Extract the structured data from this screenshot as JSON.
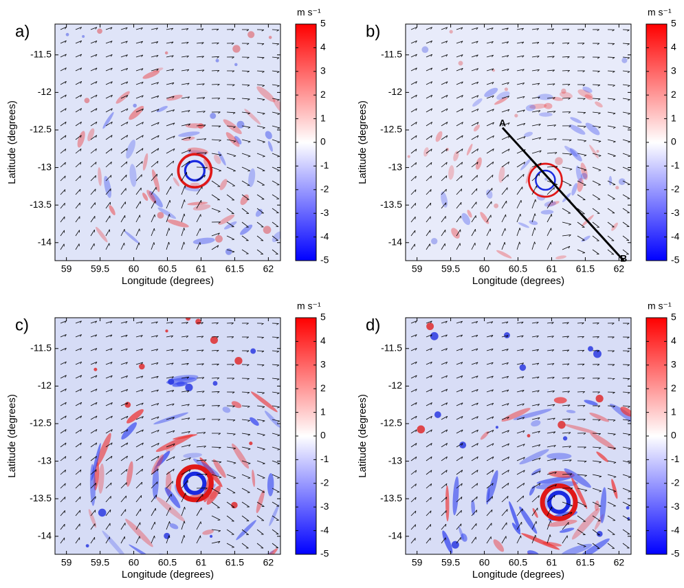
{
  "chart_data": [
    {
      "type": "heatmap",
      "panel_label": "a)",
      "xlabel": "Longitude (degrees)",
      "ylabel": "Latitude (degrees)",
      "xlim": [
        58.83,
        62.18
      ],
      "ylim": [
        -14.24,
        -11.09
      ],
      "xticks": [
        59,
        59.5,
        60,
        60.5,
        61,
        61.5,
        62
      ],
      "yticks": [
        -14,
        -13.5,
        -13,
        -12.5,
        -12,
        -11.5
      ],
      "colorbar_label": "m s⁻¹",
      "clim": [
        -5,
        5
      ],
      "cticks": [
        -5,
        -4,
        -3,
        -2,
        -1,
        0,
        1,
        2,
        3,
        4,
        5
      ],
      "colormap": [
        "#0000ff",
        "#ffffff",
        "#ff0000"
      ]
    },
    {
      "type": "heatmap",
      "panel_label": "b)",
      "xlabel": "Longitude (degrees)",
      "ylabel": "Latitude (degrees)",
      "xlim": [
        58.83,
        62.18
      ],
      "ylim": [
        -14.24,
        -11.09
      ],
      "xticks": [
        59,
        59.5,
        60,
        60.5,
        61,
        61.5,
        62
      ],
      "yticks": [
        -14,
        -13.5,
        -13,
        -12.5,
        -12,
        -11.5
      ],
      "colorbar_label": "m s⁻¹",
      "clim": [
        -5,
        5
      ],
      "cticks": [
        -5,
        -4,
        -3,
        -2,
        -1,
        0,
        1,
        2,
        3,
        4,
        5
      ],
      "colormap": [
        "#0000ff",
        "#ffffff",
        "#ff0000"
      ],
      "annotations": [
        {
          "text": "A",
          "x": 60.27,
          "y": -12.47
        },
        {
          "text": "B",
          "x": 62.07,
          "y": -14.24
        }
      ]
    },
    {
      "type": "heatmap",
      "panel_label": "c)",
      "xlabel": "Longitude (degrees)",
      "ylabel": "Latitude (degrees)",
      "xlim": [
        58.83,
        62.18
      ],
      "ylim": [
        -14.24,
        -11.09
      ],
      "xticks": [
        59,
        59.5,
        60,
        60.5,
        61,
        61.5,
        62
      ],
      "yticks": [
        -14,
        -13.5,
        -13,
        -12.5,
        -12,
        -11.5
      ],
      "colorbar_label": "m s⁻¹",
      "clim": [
        -5,
        5
      ],
      "cticks": [
        -5,
        -4,
        -3,
        -2,
        -1,
        0,
        1,
        2,
        3,
        4,
        5
      ],
      "colormap": [
        "#0000ff",
        "#ffffff",
        "#ff0000"
      ]
    },
    {
      "type": "heatmap",
      "panel_label": "d)",
      "xlabel": "Longitude (degrees)",
      "ylabel": "Latitude (degrees)",
      "xlim": [
        58.83,
        62.18
      ],
      "ylim": [
        -14.24,
        -11.09
      ],
      "xticks": [
        59,
        59.5,
        60,
        60.5,
        61,
        61.5,
        62
      ],
      "yticks": [
        -14,
        -13.5,
        -13,
        -12.5,
        -12,
        -11.5
      ],
      "colorbar_label": "m s⁻¹",
      "clim": [
        -5,
        5
      ],
      "cticks": [
        -5,
        -4,
        -3,
        -2,
        -1,
        0,
        1,
        2,
        3,
        4,
        5
      ],
      "colormap": [
        "#0000ff",
        "#ffffff",
        "#ff0000"
      ]
    }
  ]
}
